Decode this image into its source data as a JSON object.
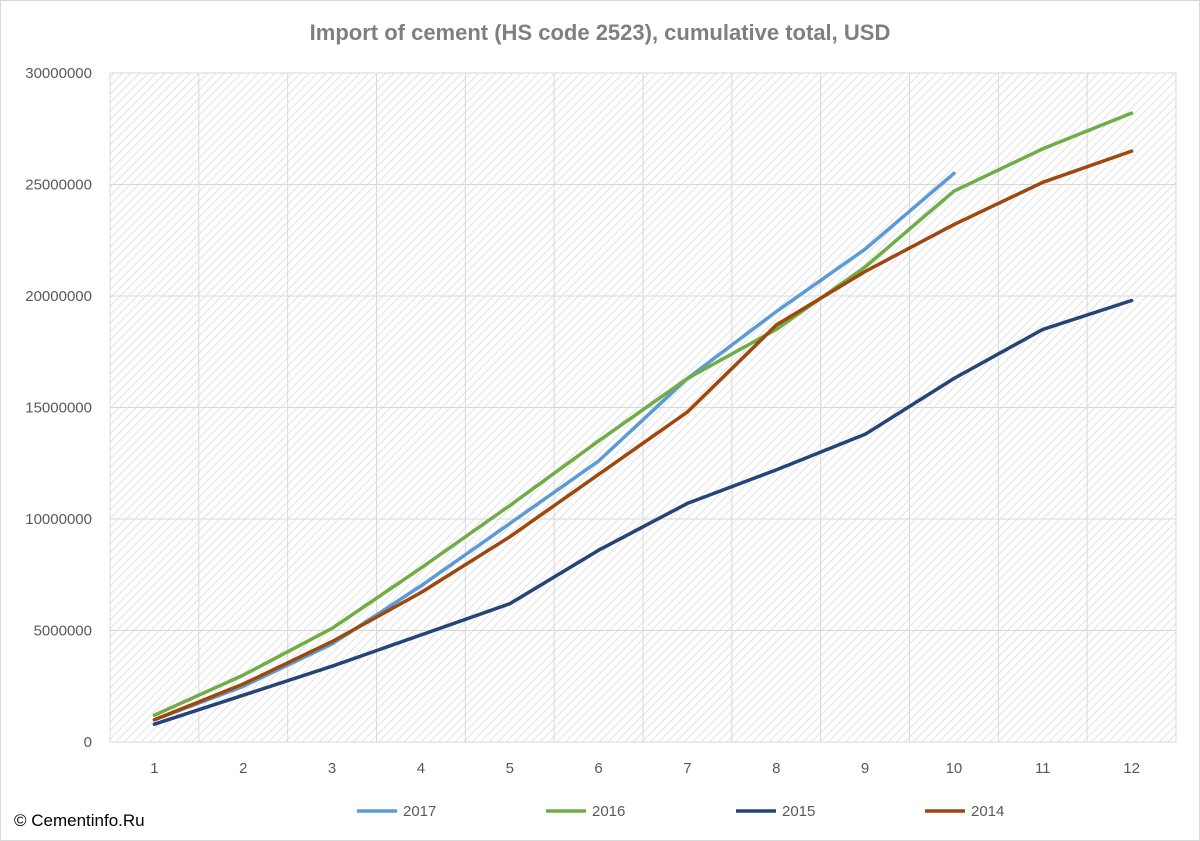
{
  "chart_data": {
    "type": "line",
    "title": "Import of cement (HS code 2523), cumulative total, USD",
    "xlabel": "",
    "ylabel": "",
    "x": [
      1,
      2,
      3,
      4,
      5,
      6,
      7,
      8,
      9,
      10,
      11,
      12
    ],
    "ylim": [
      0,
      30000000
    ],
    "yticks": [
      0,
      5000000,
      10000000,
      15000000,
      20000000,
      25000000,
      30000000
    ],
    "grid": true,
    "legend_position": "bottom",
    "series": [
      {
        "name": "2017",
        "color": "#5b9bd5",
        "values": [
          1000000,
          2500000,
          4400000,
          7000000,
          9800000,
          12600000,
          16300000,
          19300000,
          22100000,
          25500000,
          null,
          null
        ]
      },
      {
        "name": "2016",
        "color": "#70ad47",
        "values": [
          1200000,
          3000000,
          5100000,
          7800000,
          10600000,
          13500000,
          16300000,
          18500000,
          21300000,
          24700000,
          26600000,
          28200000
        ]
      },
      {
        "name": "2015",
        "color": "#264478",
        "values": [
          800000,
          2100000,
          3400000,
          4800000,
          6200000,
          8600000,
          10700000,
          12200000,
          13800000,
          16300000,
          18500000,
          19800000
        ]
      },
      {
        "name": "2014",
        "color": "#9e480e",
        "values": [
          1000000,
          2600000,
          4500000,
          6700000,
          9200000,
          12000000,
          14800000,
          18700000,
          21100000,
          23200000,
          25100000,
          26500000
        ]
      }
    ]
  },
  "copyright": "© Cementinfo.Ru"
}
